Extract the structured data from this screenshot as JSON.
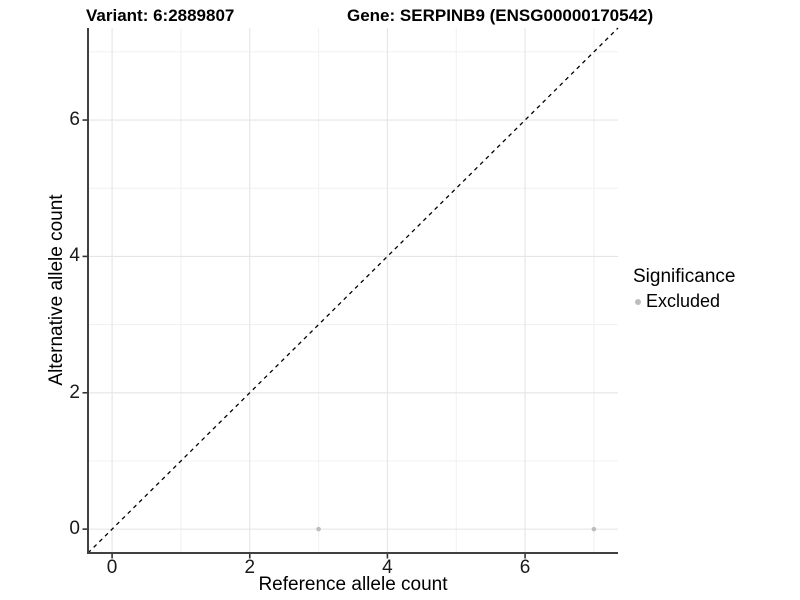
{
  "header": {
    "variant_title": "Variant: 6:2889807",
    "gene_title": "Gene: SERPINB9 (ENSG00000170542)"
  },
  "chart_data": {
    "type": "scatter",
    "title": "Variant: 6:2889807    Gene: SERPINB9 (ENSG00000170542)",
    "xlabel": "Reference allele count",
    "ylabel": "Alternative allele count",
    "xlim": [
      -0.35,
      7.35
    ],
    "ylim": [
      -0.35,
      7.35
    ],
    "x_ticks": [
      0,
      2,
      4,
      6
    ],
    "y_ticks": [
      0,
      2,
      4,
      6
    ],
    "x_minor_gridlines": [
      1,
      3,
      5,
      7
    ],
    "y_minor_gridlines": [
      1,
      3,
      5,
      7
    ],
    "grid": "on",
    "identity_line": {
      "style": "dashed",
      "color": "#000000",
      "from": [
        -0.35,
        -0.35
      ],
      "to": [
        7.35,
        7.35
      ]
    },
    "series": [
      {
        "name": "Excluded",
        "color": "#bdbdbd",
        "points": [
          {
            "x": 3,
            "y": 0
          },
          {
            "x": 7,
            "y": 0
          }
        ]
      }
    ],
    "legend": {
      "title": "Significance",
      "position": "right",
      "entries": [
        {
          "label": "Excluded",
          "color": "#bdbdbd",
          "marker": "circle"
        }
      ]
    }
  },
  "colors": {
    "background": "#ffffff",
    "axis_line": "#404040",
    "tick_mark": "#333333",
    "grid_major": "#e5e5e5",
    "grid_minor": "#f0f0f0",
    "point": "#bdbdbd",
    "identity_line": "#000000"
  }
}
